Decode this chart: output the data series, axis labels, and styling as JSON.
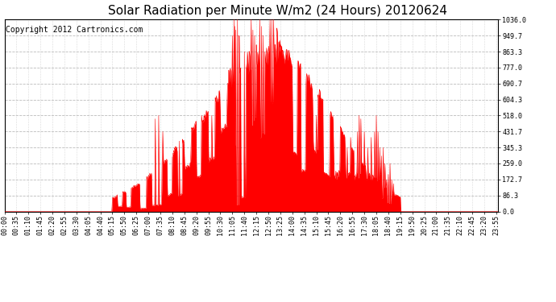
{
  "title": "Solar Radiation per Minute W/m2 (24 Hours) 20120624",
  "copyright": "Copyright 2012 Cartronics.com",
  "fill_color": "#FF0000",
  "line_color": "#FF0000",
  "background_color": "#FFFFFF",
  "plot_bg_color": "#FFFFFF",
  "grid_color": "#AAAAAA",
  "dashed_line_color": "#FF0000",
  "ytick_labels": [
    "0.0",
    "86.3",
    "172.7",
    "259.0",
    "345.3",
    "431.7",
    "518.0",
    "604.3",
    "690.7",
    "777.0",
    "863.3",
    "949.7",
    "1036.0"
  ],
  "ytick_values": [
    0.0,
    86.3,
    172.7,
    259.0,
    345.3,
    431.7,
    518.0,
    604.3,
    690.7,
    777.0,
    863.3,
    949.7,
    1036.0
  ],
  "ymax": 1036.0,
  "ymin": 0.0,
  "minutes_per_day": 1440,
  "title_fontsize": 11,
  "copyright_fontsize": 7,
  "tick_fontsize": 6,
  "xtick_step": 35,
  "rise_minute": 315,
  "fall_minute": 1155,
  "peak_minute": 795,
  "peak_value": 900,
  "afternoon_plateau": 200
}
